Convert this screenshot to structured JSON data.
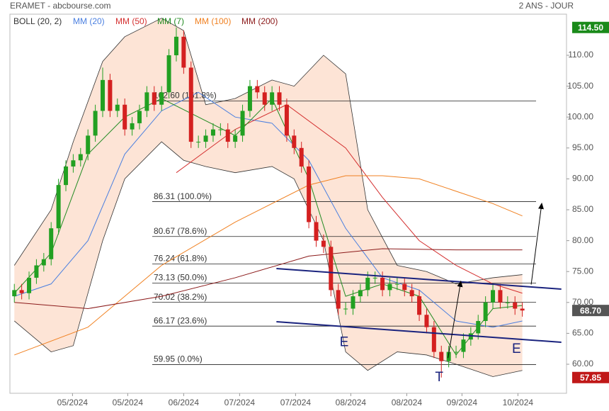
{
  "chart_data": {
    "type": "candlestick",
    "title": "ERAMET - abcbourse.com",
    "subtitle": "2 ANS - JOUR",
    "xlim": [
      -0.6,
      75
    ],
    "ylim": [
      55.3,
      116.65
    ],
    "yticks": [
      {
        "value": 60,
        "label": "60.00"
      },
      {
        "value": 65,
        "label": "65.00"
      },
      {
        "value": 70,
        "label": "70.00"
      },
      {
        "value": 75,
        "label": "75.00"
      },
      {
        "value": 80,
        "label": "80.00"
      },
      {
        "value": 85,
        "label": "85.00"
      },
      {
        "value": 90,
        "label": "90.00"
      },
      {
        "value": 95,
        "label": "95.00"
      },
      {
        "value": 100,
        "label": "100.00"
      },
      {
        "value": 105,
        "label": "105.00"
      },
      {
        "value": 110,
        "label": "110.00"
      }
    ],
    "xticks": [
      {
        "value": 7.9,
        "label": "05/2024"
      },
      {
        "value": 15.4,
        "label": "05/2024"
      },
      {
        "value": 23,
        "label": "06/2024"
      },
      {
        "value": 30.6,
        "label": "07/2024"
      },
      {
        "value": 38.2,
        "label": "07/2024"
      },
      {
        "value": 45.7,
        "label": "08/2024"
      },
      {
        "value": 53.3,
        "label": "08/2024"
      },
      {
        "value": 60.8,
        "label": "09/2024"
      },
      {
        "value": 68.4,
        "label": "10/2024"
      }
    ],
    "up_color": "#22a022",
    "down_color": "#d42020",
    "x": [
      0,
      1,
      2,
      3,
      4,
      5,
      6,
      7,
      8,
      9,
      10,
      11,
      12,
      13,
      14,
      15,
      16,
      17,
      18,
      19,
      20,
      21,
      22,
      23,
      24,
      25,
      26,
      27,
      28,
      29,
      30,
      31,
      32,
      33,
      34,
      35,
      36,
      37,
      38,
      39,
      40,
      41,
      42,
      43,
      44,
      45,
      46,
      47,
      48,
      49,
      50,
      51,
      52,
      53,
      54,
      55,
      56,
      57,
      58,
      59,
      60,
      61,
      62,
      63,
      64,
      65,
      66,
      67,
      68,
      69
    ],
    "open": [
      71,
      72,
      71.5,
      74,
      76,
      77,
      82,
      89,
      92,
      93,
      94,
      97,
      101,
      106,
      101,
      102,
      98,
      99,
      101,
      104,
      102,
      104,
      110,
      113,
      108,
      96,
      96,
      97,
      98,
      98,
      96,
      97,
      101,
      105,
      104,
      102,
      104,
      102,
      97,
      95,
      92,
      83,
      80,
      79,
      72,
      69,
      69,
      71,
      72,
      74,
      74,
      72,
      73,
      73,
      72,
      71,
      68,
      66,
      62,
      60.5,
      62,
      62,
      64,
      65,
      67,
      70,
      72,
      70,
      70,
      69
    ],
    "close": [
      72,
      71.5,
      74,
      76,
      77,
      82,
      89,
      92,
      93,
      94,
      97,
      101,
      106,
      101,
      102,
      98,
      99,
      101,
      104,
      102,
      104,
      110,
      113,
      108,
      96,
      96,
      97,
      98,
      98,
      96,
      97,
      101,
      105,
      104,
      102,
      104,
      102,
      97,
      95,
      92,
      83,
      80,
      79,
      72,
      69,
      69,
      71,
      72,
      74,
      74,
      72,
      73,
      73,
      72,
      71,
      68,
      66,
      62,
      60.5,
      62,
      62,
      64,
      65,
      67,
      70,
      72,
      70,
      70,
      69,
      68.7
    ],
    "high": [
      73,
      73,
      75,
      77,
      78,
      83,
      90,
      93,
      94,
      95,
      98,
      102,
      108,
      107,
      103,
      103,
      100,
      102,
      105,
      105,
      105,
      111,
      114.5,
      114,
      109,
      97,
      98,
      99,
      99,
      99,
      98,
      102,
      106,
      106,
      105,
      105,
      105,
      103,
      98,
      96,
      93,
      84,
      81,
      80,
      73,
      70,
      72,
      73,
      75,
      75,
      75,
      74,
      74,
      74,
      73,
      72,
      69,
      67,
      63,
      63,
      63,
      65,
      66,
      68,
      71,
      73,
      73,
      71,
      71,
      70
    ],
    "low": [
      70,
      70.5,
      70.5,
      73,
      75,
      76,
      81,
      88,
      91,
      92,
      93,
      96,
      100,
      100,
      100,
      97,
      97,
      98,
      100,
      101,
      101,
      103,
      109,
      107,
      95,
      95,
      95,
      96,
      97,
      95,
      95,
      96,
      100,
      103,
      101,
      101,
      101,
      96,
      94,
      91,
      82,
      79,
      78,
      71,
      68,
      68,
      68,
      70,
      71,
      73,
      71,
      71,
      72,
      71,
      70,
      67,
      65,
      61,
      57.85,
      59.5,
      61,
      61,
      63,
      64,
      66,
      69,
      69,
      69,
      68,
      67.7
    ],
    "bollinger": {
      "name": "BOLL (20, 2)",
      "color": "#333333",
      "fill": "#fde4d6",
      "x": [
        0,
        5,
        8,
        12,
        15,
        20,
        23,
        26,
        30,
        35,
        38,
        42,
        45,
        48,
        52,
        56,
        60,
        65,
        69
      ],
      "upper": [
        76,
        85,
        96,
        109,
        113,
        116,
        114,
        102,
        103,
        106,
        105,
        110,
        107,
        85,
        76,
        75,
        73,
        74,
        74.5
      ],
      "lower": [
        67,
        62,
        63,
        80,
        90,
        96,
        93,
        92,
        91,
        92,
        90,
        80,
        62,
        59,
        62,
        61.5,
        60,
        58,
        59
      ]
    },
    "series": [
      {
        "name": "MM (20)",
        "color": "#4a7fe0",
        "x": [
          0,
          5,
          10,
          15,
          20,
          25,
          30,
          35,
          40,
          45,
          50,
          55,
          60,
          65,
          69
        ],
        "values": [
          71,
          73,
          80,
          94,
          101,
          104,
          100,
          99,
          93,
          82,
          74,
          72,
          67,
          66,
          67
        ]
      },
      {
        "name": "MM (50)",
        "color": "#d43030",
        "x": [
          22,
          30,
          37,
          45,
          50,
          55,
          60,
          65,
          69
        ],
        "values": [
          91,
          98,
          102,
          95,
          87,
          80,
          76,
          73,
          71.5
        ]
      },
      {
        "name": "MM (7)",
        "color": "#228b22",
        "x": [
          0,
          5,
          10,
          15,
          20,
          25,
          30,
          35,
          40,
          45,
          50,
          55,
          60,
          65,
          69
        ],
        "values": [
          71.5,
          78,
          94,
          100,
          103,
          100,
          97,
          103,
          90,
          71,
          73,
          71,
          61.5,
          69,
          69.5
        ]
      },
      {
        "name": "MM (100)",
        "color": "#f08020",
        "x": [
          0,
          10,
          20,
          30,
          40,
          45,
          50,
          55,
          60,
          65,
          69
        ],
        "values": [
          61.5,
          66,
          76,
          83,
          89,
          90.5,
          90.5,
          90,
          88,
          86,
          84
        ]
      },
      {
        "name": "MM (200)",
        "color": "#8b1a1a",
        "x": [
          0,
          10,
          20,
          30,
          40,
          50,
          60,
          69
        ],
        "values": [
          70,
          69,
          71,
          74,
          77.5,
          78.7,
          78.5,
          78.5
        ]
      }
    ],
    "fib_levels": [
      {
        "value": 102.6,
        "label": "102.60  (161.8%)"
      },
      {
        "value": 86.31,
        "label": "86.31  (100.0%)"
      },
      {
        "value": 80.67,
        "label": "80.67  (78.6%)"
      },
      {
        "value": 76.24,
        "label": "76.24  (61.8%)"
      },
      {
        "value": 73.13,
        "label": "73.13  (50.0%)"
      },
      {
        "value": 70.02,
        "label": "70.02  (38.2%)"
      },
      {
        "value": 66.17,
        "label": "66.17  (23.6%)"
      },
      {
        "value": 59.95,
        "label": "59.95  (0.0%)"
      }
    ],
    "trendlines": [
      {
        "x": [
          35.6,
          74.3
        ],
        "values": [
          75.48,
          72.16
        ]
      },
      {
        "x": [
          35.6,
          74.3
        ],
        "values": [
          66.88,
          63.56
        ]
      }
    ],
    "arrows": [
      {
        "x": [
          58.9,
          60.6
        ],
        "values": [
          61,
          73.1
        ]
      },
      {
        "x": [
          70.2,
          71.6
        ],
        "values": [
          72.9,
          85.7
        ]
      }
    ],
    "annotations": [
      {
        "text": "E",
        "x": 44.8,
        "y": 63.5
      },
      {
        "text": "T",
        "x": 57.7,
        "y": 57.8
      },
      {
        "text": "E",
        "x": 68.2,
        "y": 62.4
      }
    ],
    "price_labels": [
      {
        "value": 114.5,
        "label": "114.50",
        "color": "#1a8a1a"
      },
      {
        "value": 68.7,
        "label": "68.70",
        "color": "#555555"
      },
      {
        "value": 57.85,
        "label": "57.85",
        "color": "#c01818"
      }
    ]
  }
}
